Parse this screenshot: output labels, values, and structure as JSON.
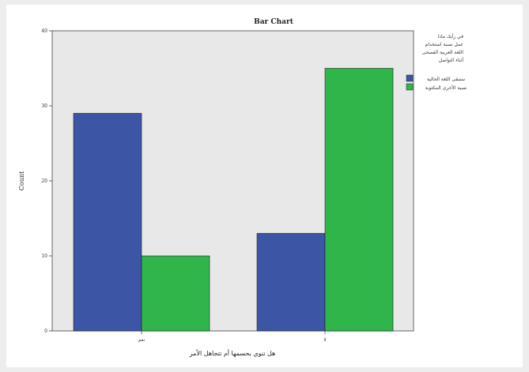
{
  "chart_data": {
    "type": "bar",
    "title": "Bar Chart",
    "xlabel": "هل تنوي بحسمها أم تتجاهل الأمر",
    "ylabel": "Count",
    "categories": [
      "نعم",
      "لا"
    ],
    "ylim": [
      0,
      40
    ],
    "yticks": [
      0,
      10,
      20,
      30,
      40
    ],
    "grid": false,
    "legend_position": "top-right",
    "legend_title": "في رأيك ماذا عمل نسبة استخدام اللغة العربية الفصحى أثناء التواصل",
    "series": [
      {
        "name": "ستبقى اللغة الحالية",
        "color": "#3c55a5",
        "values": [
          29,
          13
        ]
      },
      {
        "name": "نسبة الأخرى المكتوبة",
        "color": "#2fb54a",
        "values": [
          10,
          35
        ]
      }
    ],
    "plot_background": "#e8e8e8"
  }
}
